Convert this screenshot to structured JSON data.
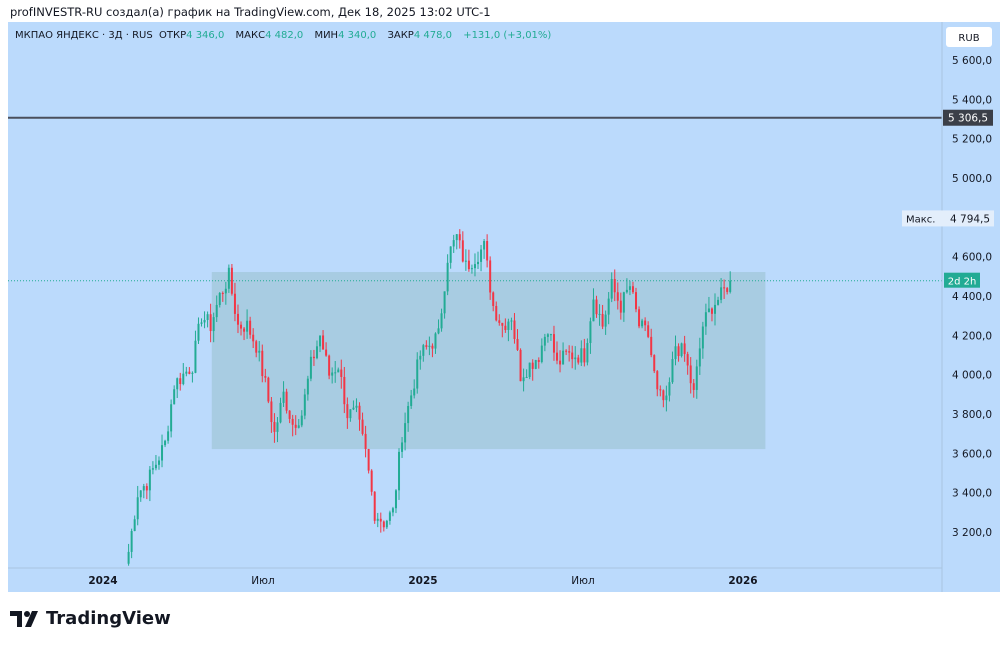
{
  "credit": "profINVESTR-RU создал(а) график на TradingView.com, Дек 18, 2025 13:02 UTC-1",
  "legend": {
    "symbol": "МКПАО ЯНДЕКС · 3Д · RUS",
    "open_label": "ОТКР",
    "open": "4 346,0",
    "high_label": "МАКС",
    "high": "4 482,0",
    "low_label": "МИН",
    "low": "4 340,0",
    "close_label": "ЗАКР",
    "close": "4 478,0",
    "change": "+131,0 (+3,01%)"
  },
  "currency": "RUB",
  "logo": "TradingView",
  "colors": {
    "up": "#22ab94",
    "down": "#f23645",
    "bg": "#bbdafc",
    "rect": "#a5c9dd"
  },
  "chart_data": {
    "type": "candlestick",
    "y_ticks": [
      "5 600,0",
      "5 400,0",
      "5 200,0",
      "5 000,0",
      "4 600,0",
      "4 400,0",
      "4 200,0",
      "4 000,0",
      "3 800,0",
      "3 600,0",
      "3 400,0",
      "3 200,0"
    ],
    "y_tick_values": [
      5600,
      5400,
      5200,
      5000,
      4600,
      4400,
      4200,
      4000,
      3800,
      3600,
      3400,
      3200
    ],
    "ylim": [
      3050,
      5700
    ],
    "x_ticks": [
      "2024",
      "Июл",
      "2025",
      "Июл",
      "2026"
    ],
    "x_tick_pos": [
      2024.0,
      2024.5,
      2025.0,
      2025.5,
      2026.0
    ],
    "xlim": [
      2023.95,
      2026.9
    ],
    "closes": [
      3100,
      3400,
      3450,
      3550,
      3650,
      3950,
      4000,
      4050,
      4300,
      4250,
      4400,
      4500,
      4250,
      4250,
      4150,
      3950,
      3700,
      3900,
      3750,
      3800,
      4050,
      4200,
      4000,
      4050,
      3800,
      3800,
      3600,
      3300,
      3250,
      3300,
      3700,
      3900,
      4100,
      4150,
      4200,
      4600,
      4700,
      4550,
      4600,
      4650,
      4350,
      4250,
      4300,
      4000,
      4050,
      4100,
      4250,
      4050,
      4100,
      4100,
      4100,
      4400,
      4250,
      4450,
      4350,
      4450,
      4250,
      4200,
      3900,
      3850,
      4150,
      4100,
      3900,
      4250,
      4350,
      4400,
      4478
    ],
    "series_start": 2024.08,
    "series_end": 2025.96,
    "hline": {
      "value": 5306.5,
      "label": "5 306,5"
    },
    "max_marker": {
      "label": "Макс.",
      "value": "4 794,5",
      "price": 4794.5
    },
    "last_price": 4478,
    "countdown": "2d 2h",
    "rectangle": {
      "x0": 2024.34,
      "x1": 2026.07,
      "y0": 3622,
      "y1": 4522
    }
  }
}
